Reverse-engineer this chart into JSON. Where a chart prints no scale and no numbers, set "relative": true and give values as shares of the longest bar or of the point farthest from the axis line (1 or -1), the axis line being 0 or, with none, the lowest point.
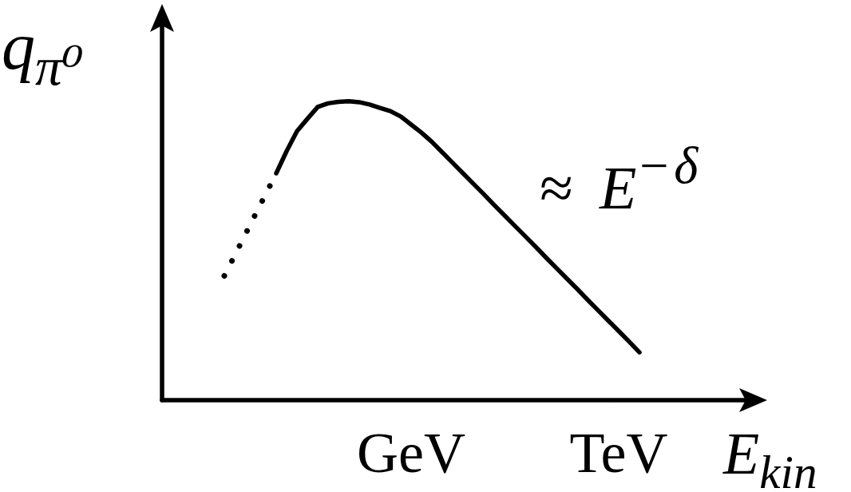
{
  "chart_data": {
    "type": "line",
    "xlabel": "E$_{kin}$",
    "ylabel": "q$_{π⁰}$",
    "relative": true,
    "marker": "none",
    "grid": false,
    "annotations": [
      "≈ E$^{−δ}$"
    ],
    "categories": [
      null,
      null,
      null,
      null,
      null,
      null,
      null,
      null,
      null,
      null,
      null,
      null,
      null,
      null,
      null,
      null,
      null,
      null,
      null,
      null,
      null,
      null,
      null,
      null,
      "GeV",
      null,
      null,
      null,
      null,
      null,
      null,
      null,
      null,
      null,
      null,
      null,
      null,
      null,
      null,
      null,
      null,
      null,
      null,
      null,
      "TeV",
      null,
      null,
      null,
      null,
      null,
      null,
      null,
      null,
      null,
      null,
      null,
      null,
      null
    ],
    "series": [
      {
        "color": "#000000",
        "line_style": "dotted",
        "values": [
          null,
          null,
          null,
          null,
          null,
          null,
          0.416,
          0.484,
          0.553,
          0.622,
          0.69,
          0.759,
          null,
          null,
          null,
          null,
          null,
          null,
          null,
          null,
          null,
          null,
          null,
          null,
          null,
          null,
          null,
          null,
          null,
          null,
          null,
          null,
          null,
          null,
          null,
          null,
          null,
          null,
          null,
          null,
          null,
          null,
          null,
          null,
          null,
          null,
          null,
          null,
          null,
          null,
          null,
          null,
          null,
          null,
          null,
          null,
          null,
          null
        ]
      },
      {
        "color": "#000000",
        "line_style": "solid",
        "values": [
          null,
          null,
          null,
          null,
          null,
          null,
          null,
          null,
          null,
          null,
          null,
          0.759,
          0.833,
          0.9,
          0.941,
          0.981,
          0.993,
          0.998,
          1.0,
          0.997,
          0.989,
          0.978,
          0.967,
          0.949,
          0.922,
          0.895,
          0.864,
          0.829,
          0.794,
          0.759,
          0.724,
          0.689,
          0.653,
          0.618,
          0.583,
          0.548,
          0.513,
          0.477,
          0.442,
          0.407,
          0.372,
          0.336,
          0.301,
          0.266,
          0.231,
          0.196,
          0.16,
          null,
          null,
          null,
          null,
          null,
          null,
          null,
          null,
          null,
          null,
          null
        ]
      }
    ]
  }
}
